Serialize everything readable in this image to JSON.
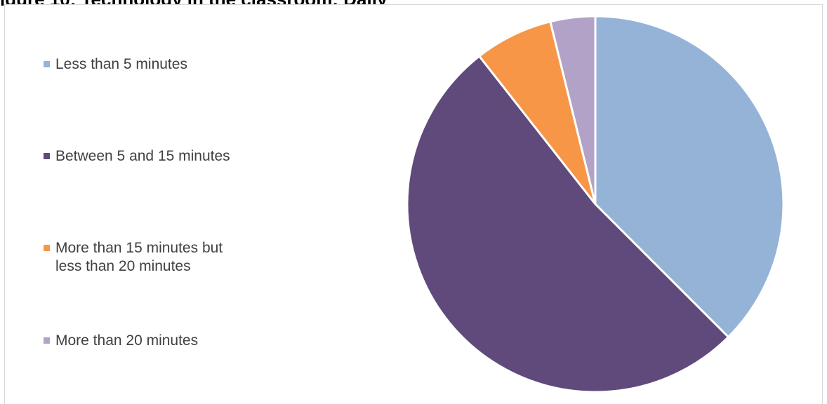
{
  "figure": {
    "title": "igure 10: Technology in the classroom: Daily"
  },
  "chart_data": {
    "type": "pie",
    "title": "",
    "categories": [
      "Less than 5 minutes",
      "Between 5 and 15 minutes",
      "More than 15 minutes but less than 20 minutes",
      "More than 20 minutes"
    ],
    "values": [
      39,
      54,
      7,
      4
    ],
    "colors": [
      "#95B3D7",
      "#604A7B",
      "#F79646",
      "#B3A2C7"
    ],
    "legend_position": "left",
    "start_angle_deg": 0,
    "direction": "clockwise"
  }
}
